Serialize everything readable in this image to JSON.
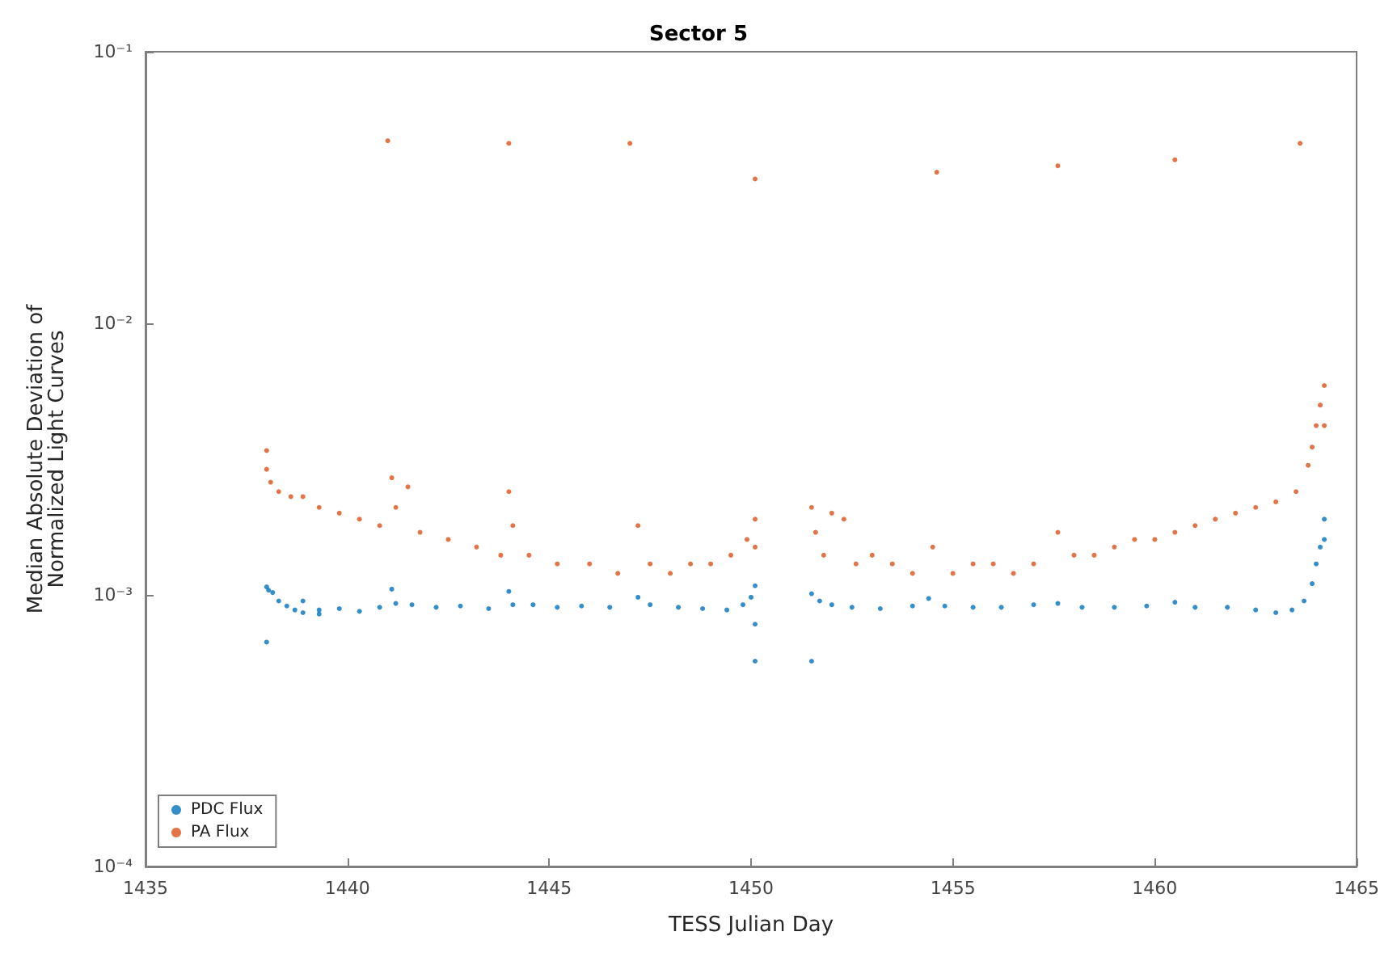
{
  "chart_data": {
    "type": "scatter",
    "title": "Sector 5",
    "xlabel": "TESS Julian Day",
    "ylabel": "Median Absolute Deviation of\nNormalized Light Curves",
    "log": "y",
    "grid": false,
    "legend": "bottom left",
    "marker": "circle",
    "xlim": [
      1435,
      1465
    ],
    "xticks": [
      1435,
      1440,
      1445,
      1450,
      1455,
      1460,
      1465
    ],
    "ylim": [
      0.0001,
      0.1
    ],
    "yticks": [
      {
        "value": 0.0001,
        "label": "10⁻⁴"
      },
      {
        "value": 0.001,
        "label": "10⁻³"
      },
      {
        "value": 0.01,
        "label": "10⁻²"
      },
      {
        "value": 0.1,
        "label": "10⁻¹"
      }
    ],
    "series": [
      {
        "name": "PDC Flux",
        "color": "#0072bd",
        "x": [
          1438.0,
          1438.0,
          1438.05,
          1438.15,
          1438.3,
          1438.5,
          1438.7,
          1438.9,
          1438.9,
          1439.3,
          1439.3,
          1439.8,
          1440.3,
          1440.8,
          1441.1,
          1441.2,
          1441.6,
          1442.2,
          1442.8,
          1443.5,
          1444.0,
          1444.1,
          1444.6,
          1445.2,
          1445.8,
          1446.5,
          1447.2,
          1447.5,
          1448.2,
          1448.8,
          1449.4,
          1449.8,
          1450.0,
          1450.1,
          1450.1,
          1450.1,
          1451.5,
          1451.5,
          1451.7,
          1452.0,
          1452.5,
          1453.2,
          1454.0,
          1454.4,
          1454.8,
          1455.5,
          1456.2,
          1457.0,
          1457.6,
          1458.2,
          1459.0,
          1459.8,
          1460.5,
          1461.0,
          1461.8,
          1462.5,
          1463.0,
          1463.4,
          1463.7,
          1463.9,
          1464.0,
          1464.1,
          1464.2,
          1464.2
        ],
        "values": [
          0.00067,
          0.00107,
          0.00104,
          0.00102,
          0.00095,
          0.00091,
          0.00088,
          0.00086,
          0.00095,
          0.00088,
          0.00085,
          0.00089,
          0.00087,
          0.0009,
          0.00105,
          0.00093,
          0.00092,
          0.0009,
          0.00091,
          0.00089,
          0.00103,
          0.00092,
          0.00092,
          0.0009,
          0.00091,
          0.0009,
          0.00098,
          0.00092,
          0.0009,
          0.00089,
          0.00088,
          0.00092,
          0.00098,
          0.00108,
          0.00078,
          0.00057,
          0.00057,
          0.00101,
          0.00095,
          0.00092,
          0.0009,
          0.00089,
          0.00091,
          0.00097,
          0.00091,
          0.0009,
          0.0009,
          0.00092,
          0.00093,
          0.0009,
          0.0009,
          0.00091,
          0.00094,
          0.0009,
          0.0009,
          0.00088,
          0.00086,
          0.00088,
          0.00095,
          0.0011,
          0.0013,
          0.0015,
          0.0019,
          0.0016
        ]
      },
      {
        "name": "PA Flux",
        "color": "#d95319",
        "x": [
          1438.0,
          1438.0,
          1438.1,
          1438.3,
          1438.6,
          1438.9,
          1439.3,
          1439.8,
          1440.3,
          1440.8,
          1441.1,
          1441.2,
          1441.5,
          1441.8,
          1442.5,
          1443.2,
          1443.8,
          1444.0,
          1444.1,
          1444.5,
          1445.2,
          1446.0,
          1446.7,
          1447.2,
          1447.5,
          1448.0,
          1448.5,
          1449.0,
          1449.5,
          1449.9,
          1450.1,
          1450.1,
          1441.0,
          1444.0,
          1447.0,
          1450.1,
          1454.6,
          1457.6,
          1460.5,
          1463.6,
          1451.5,
          1451.6,
          1451.8,
          1452.0,
          1452.3,
          1452.6,
          1453.0,
          1453.5,
          1454.0,
          1454.5,
          1455.0,
          1455.5,
          1456.0,
          1456.5,
          1457.0,
          1457.6,
          1458.0,
          1458.5,
          1459.0,
          1459.5,
          1460.0,
          1460.5,
          1461.0,
          1461.5,
          1462.0,
          1462.5,
          1463.0,
          1463.5,
          1463.8,
          1463.9,
          1464.0,
          1464.1,
          1464.2,
          1464.2
        ],
        "values": [
          0.0034,
          0.0029,
          0.0026,
          0.0024,
          0.0023,
          0.0023,
          0.0021,
          0.002,
          0.0019,
          0.0018,
          0.0027,
          0.0021,
          0.0025,
          0.0017,
          0.0016,
          0.0015,
          0.0014,
          0.0024,
          0.0018,
          0.0014,
          0.0013,
          0.0013,
          0.0012,
          0.0018,
          0.0013,
          0.0012,
          0.0013,
          0.0013,
          0.0014,
          0.0016,
          0.0019,
          0.0015,
          0.047,
          0.046,
          0.046,
          0.034,
          0.036,
          0.038,
          0.04,
          0.046,
          0.0021,
          0.0017,
          0.0014,
          0.002,
          0.0019,
          0.0013,
          0.0014,
          0.0013,
          0.0012,
          0.0015,
          0.0012,
          0.0013,
          0.0013,
          0.0012,
          0.0013,
          0.0017,
          0.0014,
          0.0014,
          0.0015,
          0.0016,
          0.0016,
          0.0017,
          0.0018,
          0.0019,
          0.002,
          0.0021,
          0.0022,
          0.0024,
          0.003,
          0.0035,
          0.0042,
          0.005,
          0.0059,
          0.0042
        ]
      }
    ]
  }
}
